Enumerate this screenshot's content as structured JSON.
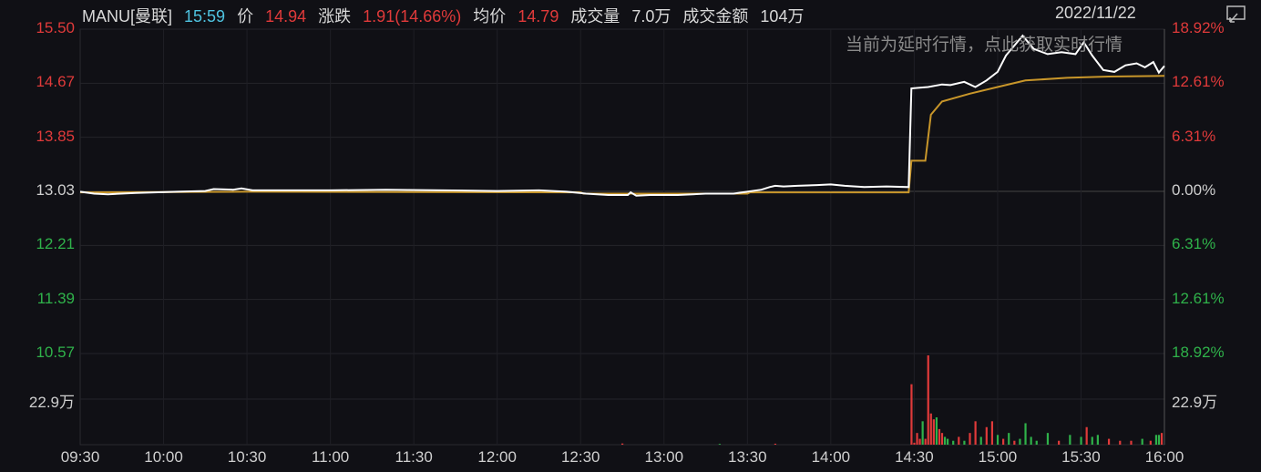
{
  "header": {
    "symbol": "MANU[曼联]",
    "time": "15:59",
    "price_label": "价",
    "price": "14.94",
    "change_label": "涨跌",
    "change": "1.91(14.66%)",
    "avg_label": "均价",
    "avg": "14.79",
    "volume_label": "成交量",
    "volume": "7.0万",
    "amount_label": "成交金额",
    "amount": "104万",
    "date": "2022/11/22"
  },
  "notice": "当前为延时行情，点此获取实时行情",
  "icons": {
    "screenshot": "screen-capture-icon"
  },
  "colors": {
    "up": "#e03a3a",
    "down": "#2fb24a",
    "price_line": "#ffffff",
    "avg_line": "#c8962a",
    "background": "#101015"
  },
  "chart_data": {
    "type": "line",
    "prev_close": 13.03,
    "ylim": [
      10.57,
      15.5
    ],
    "left_ticks": [
      "15.50",
      "14.67",
      "13.85",
      "13.03",
      "12.21",
      "11.39",
      "10.57"
    ],
    "right_ticks": [
      "18.92%",
      "12.61%",
      "6.31%",
      "0.00%",
      "6.31%",
      "12.61%",
      "18.92%"
    ],
    "volume_tick": "22.9万",
    "volume_max_wan": 45.8,
    "x_ticks": [
      "09:30",
      "10:00",
      "10:30",
      "11:00",
      "11:30",
      "12:00",
      "12:30",
      "13:00",
      "13:30",
      "14:00",
      "14:30",
      "15:00",
      "15:30",
      "16:00"
    ],
    "price": [
      [
        0,
        13.03
      ],
      [
        5,
        13.0
      ],
      [
        10,
        12.99
      ],
      [
        20,
        13.01
      ],
      [
        35,
        13.03
      ],
      [
        45,
        13.04
      ],
      [
        48,
        13.07
      ],
      [
        55,
        13.06
      ],
      [
        58,
        13.08
      ],
      [
        62,
        13.05
      ],
      [
        90,
        13.05
      ],
      [
        110,
        13.06
      ],
      [
        130,
        13.05
      ],
      [
        150,
        13.04
      ],
      [
        165,
        13.05
      ],
      [
        175,
        13.03
      ],
      [
        182,
        13.0
      ],
      [
        190,
        12.98
      ],
      [
        197,
        12.98
      ],
      [
        198,
        13.02
      ],
      [
        200,
        12.97
      ],
      [
        205,
        12.98
      ],
      [
        215,
        12.98
      ],
      [
        225,
        13.0
      ],
      [
        235,
        13.0
      ],
      [
        240,
        13.03
      ],
      [
        245,
        13.06
      ],
      [
        248,
        13.1
      ],
      [
        250,
        13.12
      ],
      [
        253,
        13.11
      ],
      [
        258,
        13.12
      ],
      [
        265,
        13.13
      ],
      [
        270,
        13.14
      ],
      [
        275,
        13.12
      ],
      [
        282,
        13.1
      ],
      [
        290,
        13.11
      ],
      [
        298,
        13.1
      ],
      [
        299,
        14.6
      ],
      [
        305,
        14.62
      ],
      [
        310,
        14.66
      ],
      [
        313,
        14.65
      ],
      [
        318,
        14.7
      ],
      [
        322,
        14.62
      ],
      [
        326,
        14.72
      ],
      [
        330,
        14.85
      ],
      [
        333,
        15.1
      ],
      [
        336,
        15.25
      ],
      [
        339,
        15.4
      ],
      [
        343,
        15.2
      ],
      [
        348,
        15.12
      ],
      [
        353,
        15.15
      ],
      [
        358,
        15.12
      ],
      [
        361,
        15.3
      ],
      [
        364,
        15.1
      ],
      [
        368,
        14.88
      ],
      [
        372,
        14.85
      ],
      [
        376,
        14.95
      ],
      [
        380,
        14.98
      ],
      [
        383,
        14.92
      ],
      [
        386,
        15.0
      ],
      [
        388,
        14.84
      ],
      [
        390,
        14.94
      ]
    ],
    "avg": [
      [
        0,
        13.02
      ],
      [
        60,
        13.03
      ],
      [
        180,
        13.02
      ],
      [
        181,
        13.0
      ],
      [
        240,
        13.0
      ],
      [
        241,
        13.02
      ],
      [
        298,
        13.02
      ],
      [
        299,
        13.5
      ],
      [
        304,
        13.5
      ],
      [
        306,
        14.2
      ],
      [
        310,
        14.4
      ],
      [
        320,
        14.52
      ],
      [
        330,
        14.62
      ],
      [
        340,
        14.72
      ],
      [
        355,
        14.76
      ],
      [
        370,
        14.78
      ],
      [
        390,
        14.79
      ]
    ],
    "volume": [
      [
        299,
        31,
        "up"
      ],
      [
        300,
        1,
        "up"
      ],
      [
        301,
        6,
        "up"
      ],
      [
        302,
        3,
        "up"
      ],
      [
        303,
        12,
        "down"
      ],
      [
        304,
        3,
        "up"
      ],
      [
        305,
        45.8,
        "up"
      ],
      [
        306,
        16,
        "up"
      ],
      [
        307,
        13,
        "up"
      ],
      [
        308,
        14,
        "down"
      ],
      [
        309,
        8,
        "up"
      ],
      [
        310,
        6,
        "up"
      ],
      [
        311,
        4,
        "down"
      ],
      [
        312,
        3,
        "down"
      ],
      [
        314,
        2,
        "down"
      ],
      [
        316,
        4,
        "up"
      ],
      [
        318,
        2,
        "down"
      ],
      [
        320,
        6,
        "up"
      ],
      [
        322,
        12,
        "up"
      ],
      [
        324,
        4,
        "down"
      ],
      [
        326,
        9,
        "up"
      ],
      [
        328,
        12,
        "up"
      ],
      [
        330,
        5,
        "down"
      ],
      [
        332,
        3,
        "up"
      ],
      [
        334,
        6,
        "down"
      ],
      [
        336,
        2,
        "up"
      ],
      [
        338,
        3,
        "down"
      ],
      [
        340,
        11,
        "down"
      ],
      [
        342,
        4,
        "down"
      ],
      [
        344,
        2,
        "down"
      ],
      [
        348,
        6,
        "down"
      ],
      [
        352,
        2,
        "up"
      ],
      [
        356,
        5,
        "down"
      ],
      [
        360,
        4,
        "down"
      ],
      [
        362,
        9,
        "up"
      ],
      [
        364,
        4,
        "down"
      ],
      [
        366,
        5,
        "down"
      ],
      [
        370,
        3,
        "up"
      ],
      [
        374,
        2,
        "up"
      ],
      [
        378,
        2,
        "up"
      ],
      [
        382,
        3,
        "down"
      ],
      [
        385,
        2,
        "up"
      ],
      [
        387,
        5,
        "down"
      ],
      [
        388,
        5,
        "down"
      ],
      [
        389,
        6,
        "up"
      ],
      [
        195,
        0.6,
        "up"
      ],
      [
        230,
        0.4,
        "down"
      ],
      [
        250,
        0.5,
        "up"
      ]
    ]
  }
}
